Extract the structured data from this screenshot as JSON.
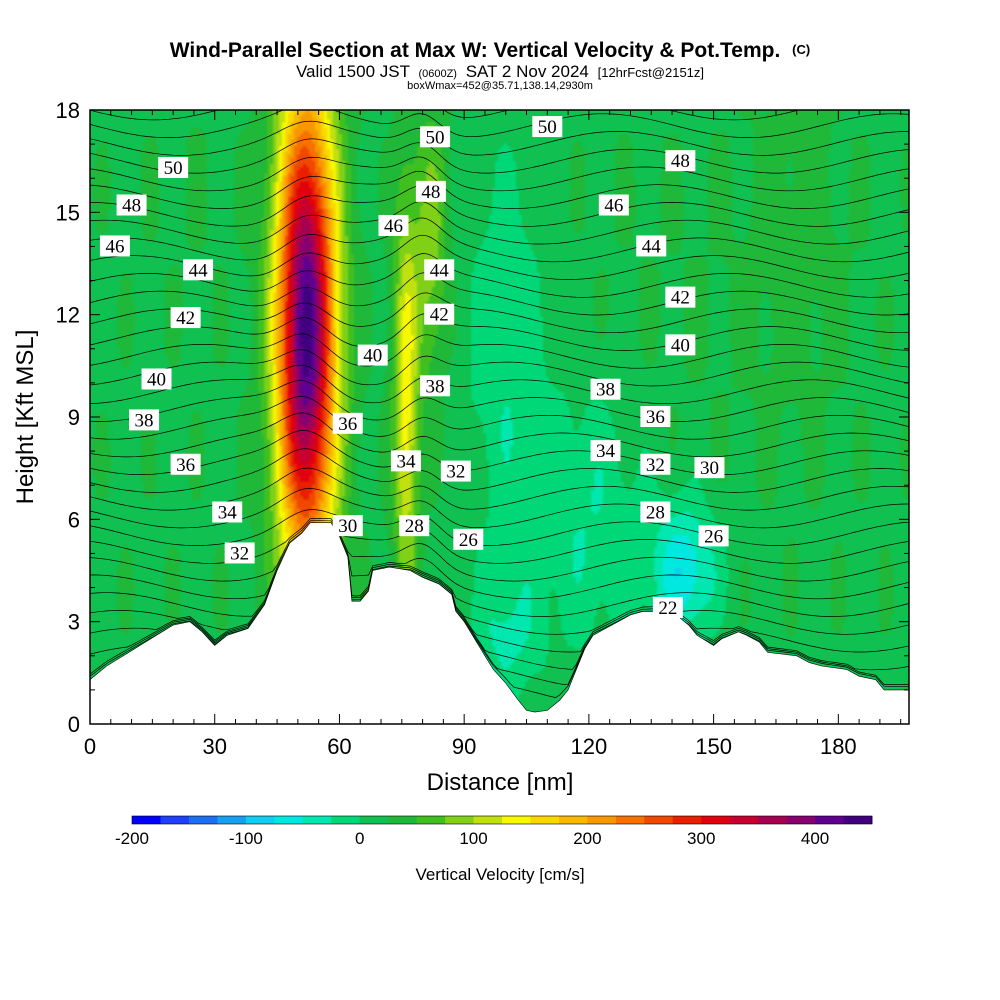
{
  "header": {
    "title": "Wind-Parallel Section at Max W: Vertical Velocity & Pot.Temp.",
    "copyright": "(C)",
    "valid_a": "Valid 1500 JST",
    "valid_utc": "(0600Z)",
    "valid_b": "SAT 2 Nov 2024",
    "forecast": "[12hrFcst@2151z]",
    "box_info": "boxWmax=452@35.71,138.14,2930m"
  },
  "chart_data": {
    "type": "heatmap",
    "xlabel": "Distance [nm]",
    "ylabel": "Height [Kft MSL]",
    "xlim": [
      0,
      197
    ],
    "ylim": [
      0,
      18
    ],
    "x_ticks": [
      0,
      30,
      60,
      90,
      120,
      150,
      180
    ],
    "y_ticks": [
      0,
      3,
      6,
      9,
      12,
      15,
      18
    ],
    "colorbar": {
      "label": "Vertical Velocity [cm/s]",
      "min": -200,
      "max": 475,
      "step": 25,
      "ticks": [
        -200,
        -100,
        0,
        100,
        200,
        300,
        400
      ],
      "colors": [
        "#0000ff",
        "#1e40f8",
        "#1e6ef2",
        "#18a0f0",
        "#12cdf0",
        "#00e8e0",
        "#00e8b0",
        "#00d878",
        "#10c050",
        "#20b838",
        "#40c020",
        "#80d018",
        "#c0e010",
        "#f8f800",
        "#f8d800",
        "#f8b800",
        "#f89800",
        "#f87000",
        "#f04800",
        "#e82000",
        "#e00010",
        "#c80030",
        "#a80050",
        "#880070",
        "#600090",
        "#400080"
      ]
    },
    "terrain": [
      [
        0,
        1.3
      ],
      [
        4,
        1.7
      ],
      [
        8,
        2.0
      ],
      [
        12,
        2.3
      ],
      [
        16,
        2.6
      ],
      [
        20,
        2.9
      ],
      [
        24,
        3.0
      ],
      [
        27,
        2.7
      ],
      [
        30,
        2.3
      ],
      [
        33,
        2.6
      ],
      [
        38,
        2.8
      ],
      [
        42,
        3.5
      ],
      [
        45,
        4.5
      ],
      [
        48,
        5.3
      ],
      [
        51,
        5.6
      ],
      [
        53,
        5.9
      ],
      [
        58,
        5.9
      ],
      [
        60,
        5.5
      ],
      [
        62,
        4.9
      ],
      [
        63,
        3.6
      ],
      [
        65,
        3.6
      ],
      [
        67,
        3.9
      ],
      [
        68,
        4.5
      ],
      [
        72,
        4.6
      ],
      [
        77,
        4.5
      ],
      [
        80,
        4.3
      ],
      [
        84,
        4.1
      ],
      [
        87,
        3.8
      ],
      [
        88,
        3.3
      ],
      [
        90,
        3.0
      ],
      [
        93,
        2.4
      ],
      [
        95,
        2.0
      ],
      [
        97,
        1.6
      ],
      [
        100,
        1.2
      ],
      [
        103,
        0.7
      ],
      [
        105,
        0.4
      ],
      [
        107,
        0.35
      ],
      [
        110,
        0.4
      ],
      [
        113,
        0.7
      ],
      [
        115,
        1.0
      ],
      [
        117,
        1.6
      ],
      [
        119,
        2.2
      ],
      [
        121,
        2.6
      ],
      [
        124,
        2.8
      ],
      [
        127,
        3.0
      ],
      [
        130,
        3.2
      ],
      [
        133,
        3.3
      ],
      [
        137,
        3.3
      ],
      [
        141,
        3.2
      ],
      [
        144,
        2.9
      ],
      [
        146,
        2.6
      ],
      [
        150,
        2.3
      ],
      [
        152,
        2.5
      ],
      [
        156,
        2.7
      ],
      [
        158,
        2.6
      ],
      [
        161,
        2.4
      ],
      [
        163,
        2.1
      ],
      [
        170,
        2.0
      ],
      [
        173,
        1.8
      ],
      [
        176,
        1.7
      ],
      [
        182,
        1.6
      ],
      [
        185,
        1.4
      ],
      [
        189,
        1.3
      ],
      [
        191,
        1.0
      ],
      [
        197,
        1.0
      ]
    ],
    "velocity_field": [
      {
        "type": "background",
        "value": 20
      },
      {
        "x": 25,
        "z": 15.5,
        "sx": 12,
        "sz": 3,
        "value": 25
      },
      {
        "x": 140,
        "z": 12,
        "sx": 30,
        "sz": 6,
        "value": 25
      },
      {
        "x": 170,
        "z": 14,
        "sx": 12,
        "sz": 5,
        "value": 35
      },
      {
        "x": 100,
        "z": 11,
        "sx": 10,
        "sz": 6,
        "value": -22
      },
      {
        "x": 120,
        "z": 6,
        "sx": 14,
        "sz": 4,
        "value": -25
      },
      {
        "x": 143,
        "z": 4.5,
        "sx": 8,
        "sz": 2,
        "value": -70
      },
      {
        "x": 100,
        "z": 2.5,
        "sx": 8,
        "sz": 2,
        "value": -25
      },
      {
        "x": 52,
        "z": 11.5,
        "sx": 7,
        "sz": 7,
        "value": 440
      },
      {
        "x": 76,
        "z": 9.5,
        "sx": 3,
        "sz": 6,
        "value": 140
      },
      {
        "x": 82,
        "z": 14,
        "sx": 4,
        "sz": 4,
        "value": 90
      }
    ],
    "contour_labels": [
      {
        "x": 20,
        "z": 16.3,
        "value": "50"
      },
      {
        "x": 10,
        "z": 15.2,
        "value": "48"
      },
      {
        "x": 6,
        "z": 14.0,
        "value": "46"
      },
      {
        "x": 26,
        "z": 13.3,
        "value": "44"
      },
      {
        "x": 23,
        "z": 11.9,
        "value": "42"
      },
      {
        "x": 16,
        "z": 10.1,
        "value": "40"
      },
      {
        "x": 13,
        "z": 8.9,
        "value": "38"
      },
      {
        "x": 23,
        "z": 7.6,
        "value": "36"
      },
      {
        "x": 33,
        "z": 6.2,
        "value": "34"
      },
      {
        "x": 36,
        "z": 5.0,
        "value": "32"
      },
      {
        "x": 83,
        "z": 17.2,
        "value": "50"
      },
      {
        "x": 82,
        "z": 15.6,
        "value": "48"
      },
      {
        "x": 73,
        "z": 14.6,
        "value": "46"
      },
      {
        "x": 84,
        "z": 13.3,
        "value": "44"
      },
      {
        "x": 84,
        "z": 12.0,
        "value": "42"
      },
      {
        "x": 68,
        "z": 10.8,
        "value": "40"
      },
      {
        "x": 83,
        "z": 9.9,
        "value": "38"
      },
      {
        "x": 62,
        "z": 8.8,
        "value": "36"
      },
      {
        "x": 76,
        "z": 7.7,
        "value": "34"
      },
      {
        "x": 88,
        "z": 7.4,
        "value": "32"
      },
      {
        "x": 62,
        "z": 5.8,
        "value": "30"
      },
      {
        "x": 78,
        "z": 5.8,
        "value": "28"
      },
      {
        "x": 91,
        "z": 5.4,
        "value": "26"
      },
      {
        "x": 110,
        "z": 17.5,
        "value": "50"
      },
      {
        "x": 142,
        "z": 16.5,
        "value": "48"
      },
      {
        "x": 126,
        "z": 15.2,
        "value": "46"
      },
      {
        "x": 135,
        "z": 14.0,
        "value": "44"
      },
      {
        "x": 142,
        "z": 12.5,
        "value": "42"
      },
      {
        "x": 142,
        "z": 11.1,
        "value": "40"
      },
      {
        "x": 124,
        "z": 9.8,
        "value": "38"
      },
      {
        "x": 136,
        "z": 9.0,
        "value": "36"
      },
      {
        "x": 124,
        "z": 8.0,
        "value": "34"
      },
      {
        "x": 136,
        "z": 7.6,
        "value": "32"
      },
      {
        "x": 149,
        "z": 7.5,
        "value": "30"
      },
      {
        "x": 136,
        "z": 6.2,
        "value": "28"
      },
      {
        "x": 150,
        "z": 5.5,
        "value": "26"
      },
      {
        "x": 139,
        "z": 3.4,
        "value": "22"
      }
    ]
  }
}
